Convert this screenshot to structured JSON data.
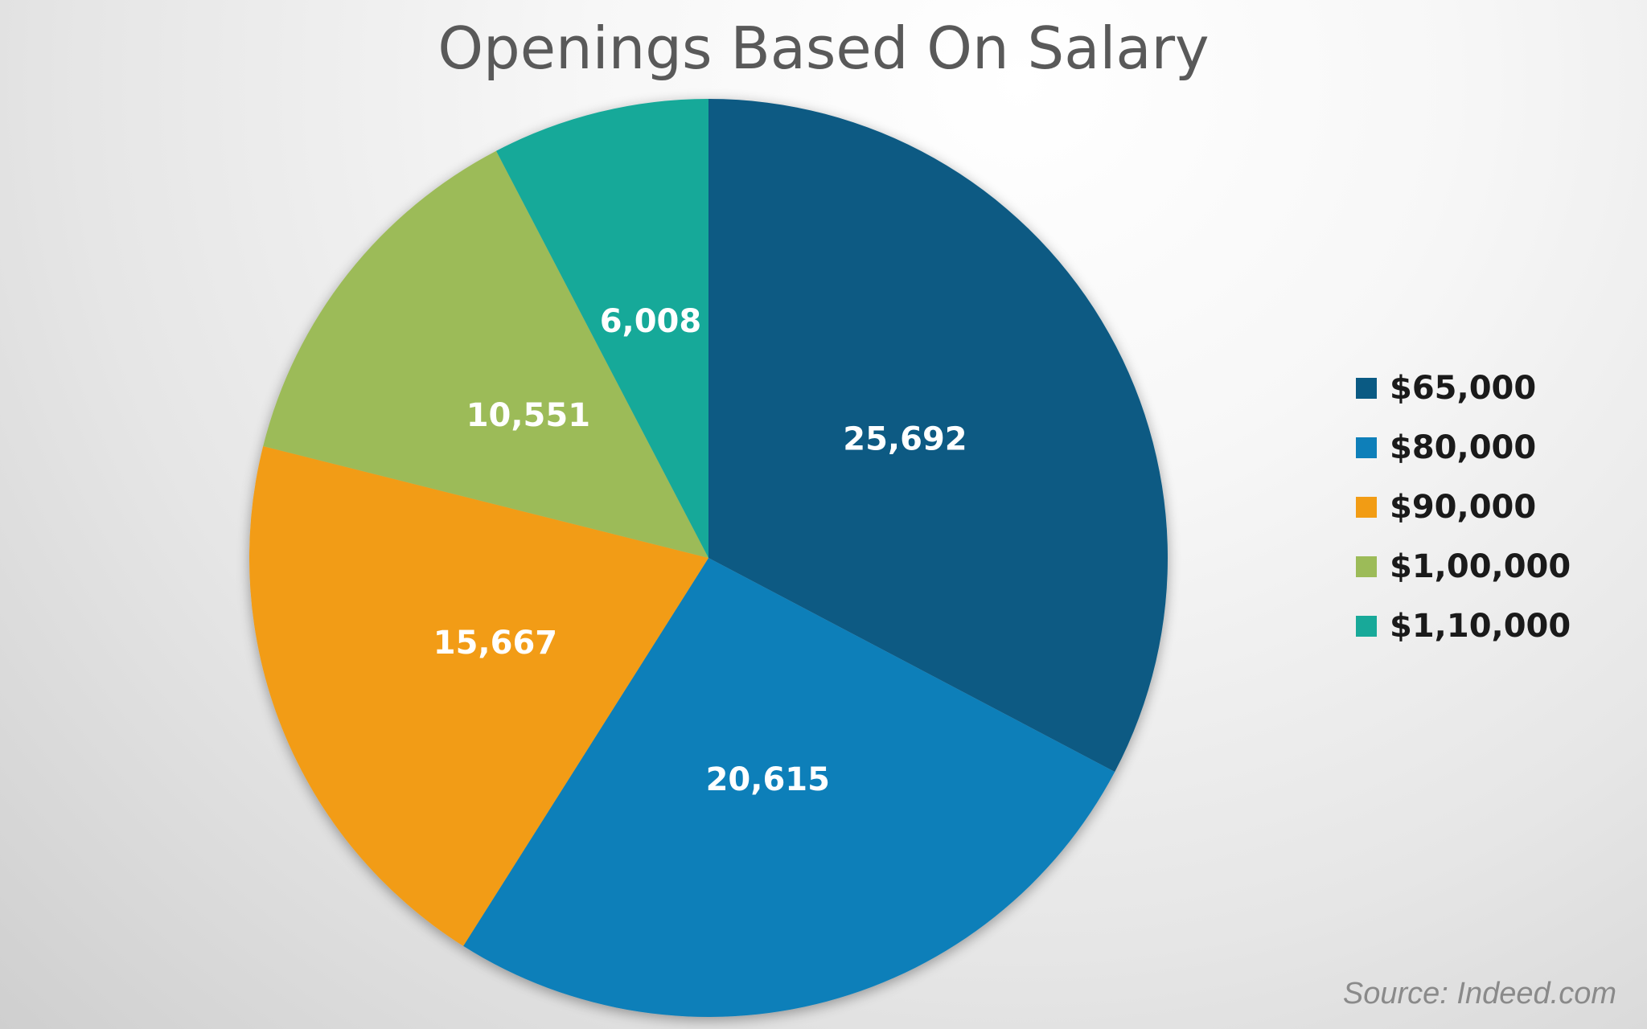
{
  "chart_data": {
    "type": "pie",
    "title": "Openings Based On Salary",
    "categories": [
      "$65,000",
      "$80,000",
      "$90,000",
      "$1,00,000",
      "$1,10,000"
    ],
    "values": [
      25692,
      20615,
      15667,
      10551,
      6008
    ],
    "value_labels": [
      "25,692",
      "20,615",
      "15,667",
      "10,551",
      "6,008"
    ],
    "colors": [
      "#0a5a83",
      "#0e7fb9",
      "#f29c14",
      "#9cbb58",
      "#18a999"
    ],
    "start": "12 o'clock, clockwise",
    "legend_position": "right",
    "source": "Source: Indeed.com"
  }
}
